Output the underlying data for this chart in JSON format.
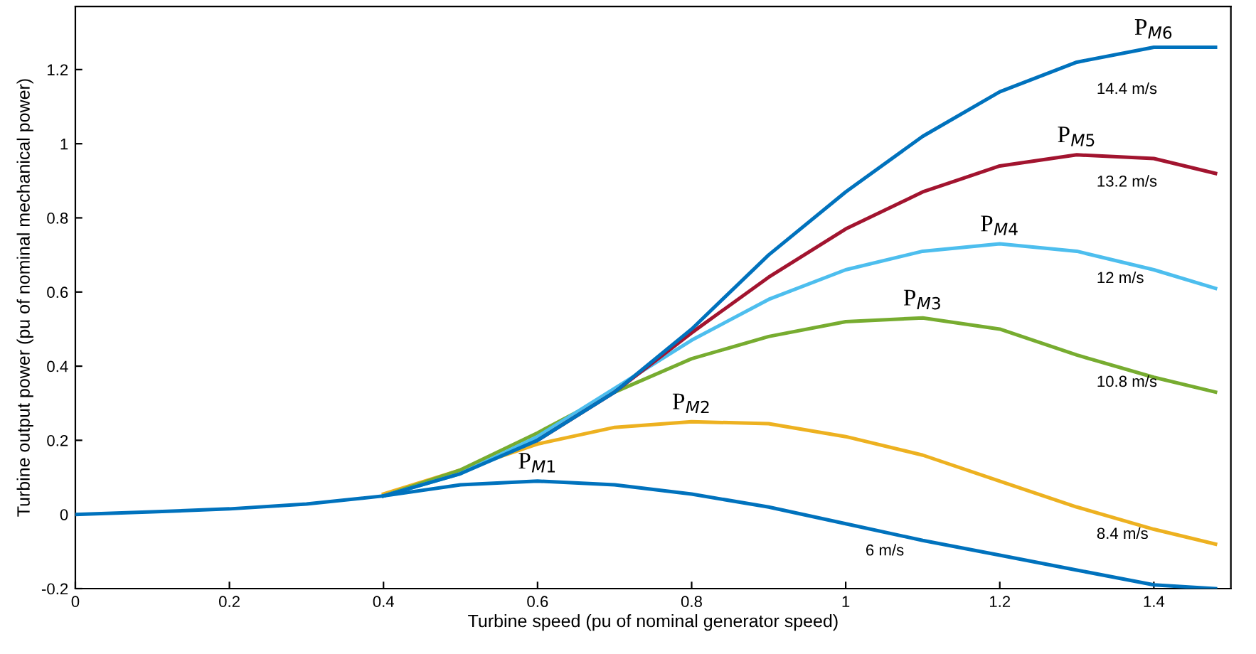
{
  "chart_data": {
    "type": "line",
    "xlabel": "Turbine speed (pu of nominal generator speed)",
    "ylabel": "Turbine output power (pu of nominal mechanical power)",
    "x": [
      0,
      0.1,
      0.2,
      0.3,
      0.4,
      0.5,
      0.6,
      0.7,
      0.8,
      0.9,
      1.0,
      1.1,
      1.2,
      1.3,
      1.4,
      1.48
    ],
    "xlim": [
      0,
      1.5
    ],
    "xticks": [
      0,
      0.2,
      0.4,
      0.6,
      0.8,
      1,
      1.2,
      1.4
    ],
    "ylim": [
      -0.2,
      1.37
    ],
    "yticks": [
      -0.2,
      0,
      0.2,
      0.4,
      0.6,
      0.8,
      1,
      1.2
    ],
    "grid": false,
    "marker": "none",
    "line_style": "solid",
    "series": [
      {
        "name": "P$_{M1}$",
        "color": "#0072bd",
        "values": [
          0,
          0.007,
          0.015,
          0.028,
          0.05,
          0.08,
          0.09,
          0.08,
          0.055,
          0.02,
          -0.025,
          -0.07,
          -0.11,
          -0.15,
          -0.19,
          -0.2
        ]
      },
      {
        "name": "P$_{M2}$",
        "color": "#edb120",
        "values": [
          null,
          null,
          null,
          null,
          0.055,
          0.12,
          0.19,
          0.235,
          0.25,
          0.245,
          0.21,
          0.16,
          0.09,
          0.02,
          -0.04,
          -0.08
        ]
      },
      {
        "name": "P$_{M3}$",
        "color": "#77ac30",
        "values": [
          null,
          null,
          null,
          null,
          0.05,
          0.12,
          0.22,
          0.33,
          0.42,
          0.48,
          0.52,
          0.53,
          0.5,
          0.43,
          0.37,
          0.33
        ]
      },
      {
        "name": "P$_{M4}$",
        "color": "#4dbeee",
        "values": [
          null,
          null,
          null,
          null,
          0.05,
          0.11,
          0.21,
          0.34,
          0.47,
          0.58,
          0.66,
          0.71,
          0.73,
          0.71,
          0.66,
          0.61
        ]
      },
      {
        "name": "P$_{M5}$",
        "color": "#a2142f",
        "values": [
          null,
          null,
          null,
          null,
          null,
          null,
          0.2,
          0.33,
          0.49,
          0.64,
          0.77,
          0.87,
          0.94,
          0.97,
          0.96,
          0.92
        ]
      },
      {
        "name": "P$_{M6}$",
        "color": "#0072bd",
        "values": [
          null,
          null,
          null,
          null,
          0.05,
          0.11,
          0.2,
          0.33,
          0.5,
          0.7,
          0.87,
          1.02,
          1.14,
          1.22,
          1.26,
          1.26
        ]
      }
    ],
    "annotations": [
      "6 m/s",
      "8.4 m/s",
      "10.8 m/s",
      "12 m/s",
      "13.2 m/s",
      "14.4 m/s"
    ]
  }
}
